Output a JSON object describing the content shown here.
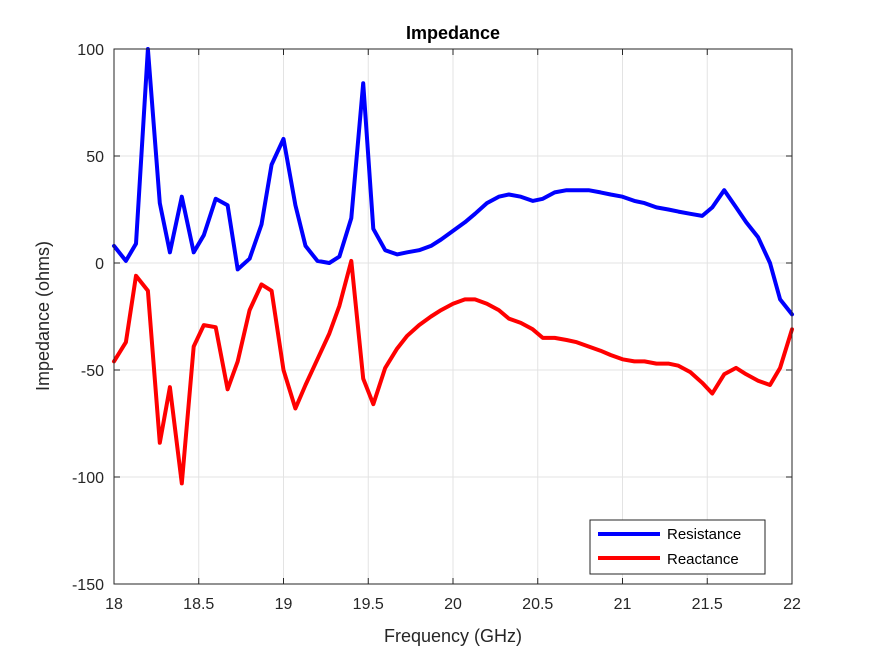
{
  "chart_data": {
    "type": "line",
    "title": "Impedance",
    "xlabel": "Frequency (GHz)",
    "ylabel": "Impedance (ohms)",
    "xlim": [
      18,
      22
    ],
    "ylim": [
      -150,
      100
    ],
    "xticks": [
      18,
      18.5,
      19,
      19.5,
      20,
      20.5,
      21,
      21.5,
      22
    ],
    "yticks": [
      100,
      50,
      0,
      -50,
      -100,
      -150
    ],
    "xtick_labels": [
      "18",
      "18.5",
      "19",
      "19.5",
      "20",
      "20.5",
      "21",
      "21.5",
      "22"
    ],
    "ytick_labels": [
      "100",
      "50",
      "0",
      "-50",
      "-100",
      "-150"
    ],
    "grid": true,
    "legend_position": "bottom-right",
    "series": [
      {
        "name": "Resistance",
        "color": "#0000ff",
        "points": [
          [
            18.0,
            8
          ],
          [
            18.07,
            1
          ],
          [
            18.13,
            9
          ],
          [
            18.2,
            100
          ],
          [
            18.27,
            28
          ],
          [
            18.33,
            5
          ],
          [
            18.4,
            31
          ],
          [
            18.47,
            5
          ],
          [
            18.53,
            13
          ],
          [
            18.6,
            30
          ],
          [
            18.67,
            27
          ],
          [
            18.73,
            -3
          ],
          [
            18.8,
            2
          ],
          [
            18.87,
            18
          ],
          [
            18.93,
            46
          ],
          [
            19.0,
            58
          ],
          [
            19.07,
            27
          ],
          [
            19.13,
            8
          ],
          [
            19.2,
            1
          ],
          [
            19.27,
            0
          ],
          [
            19.33,
            3
          ],
          [
            19.4,
            21
          ],
          [
            19.47,
            84
          ],
          [
            19.53,
            16
          ],
          [
            19.6,
            6
          ],
          [
            19.67,
            4
          ],
          [
            19.73,
            5
          ],
          [
            19.8,
            6
          ],
          [
            19.87,
            8
          ],
          [
            19.93,
            11
          ],
          [
            20.0,
            15
          ],
          [
            20.07,
            19
          ],
          [
            20.13,
            23
          ],
          [
            20.2,
            28
          ],
          [
            20.27,
            31
          ],
          [
            20.33,
            32
          ],
          [
            20.4,
            31
          ],
          [
            20.47,
            29
          ],
          [
            20.53,
            30
          ],
          [
            20.6,
            33
          ],
          [
            20.67,
            34
          ],
          [
            20.73,
            34
          ],
          [
            20.8,
            34
          ],
          [
            20.87,
            33
          ],
          [
            20.93,
            32
          ],
          [
            21.0,
            31
          ],
          [
            21.07,
            29
          ],
          [
            21.13,
            28
          ],
          [
            21.2,
            26
          ],
          [
            21.27,
            25
          ],
          [
            21.33,
            24
          ],
          [
            21.4,
            23
          ],
          [
            21.47,
            22
          ],
          [
            21.53,
            26
          ],
          [
            21.6,
            34
          ],
          [
            21.67,
            26
          ],
          [
            21.73,
            19
          ],
          [
            21.8,
            12
          ],
          [
            21.87,
            0
          ],
          [
            21.93,
            -17
          ],
          [
            22.0,
            -24
          ]
        ]
      },
      {
        "name": "Reactance",
        "color": "#ff0000",
        "points": [
          [
            18.0,
            -46
          ],
          [
            18.07,
            -37
          ],
          [
            18.13,
            -6
          ],
          [
            18.2,
            -13
          ],
          [
            18.27,
            -84
          ],
          [
            18.33,
            -58
          ],
          [
            18.4,
            -103
          ],
          [
            18.47,
            -39
          ],
          [
            18.53,
            -29
          ],
          [
            18.6,
            -30
          ],
          [
            18.67,
            -59
          ],
          [
            18.73,
            -46
          ],
          [
            18.8,
            -22
          ],
          [
            18.87,
            -10
          ],
          [
            18.93,
            -13
          ],
          [
            19.0,
            -50
          ],
          [
            19.07,
            -68
          ],
          [
            19.13,
            -57
          ],
          [
            19.2,
            -45
          ],
          [
            19.27,
            -33
          ],
          [
            19.33,
            -20
          ],
          [
            19.4,
            1
          ],
          [
            19.47,
            -54
          ],
          [
            19.53,
            -66
          ],
          [
            19.6,
            -49
          ],
          [
            19.67,
            -40
          ],
          [
            19.73,
            -34
          ],
          [
            19.8,
            -29
          ],
          [
            19.87,
            -25
          ],
          [
            19.93,
            -22
          ],
          [
            20.0,
            -19
          ],
          [
            20.07,
            -17
          ],
          [
            20.13,
            -17
          ],
          [
            20.2,
            -19
          ],
          [
            20.27,
            -22
          ],
          [
            20.33,
            -26
          ],
          [
            20.4,
            -28
          ],
          [
            20.47,
            -31
          ],
          [
            20.53,
            -35
          ],
          [
            20.6,
            -35
          ],
          [
            20.67,
            -36
          ],
          [
            20.73,
            -37
          ],
          [
            20.8,
            -39
          ],
          [
            20.87,
            -41
          ],
          [
            20.93,
            -43
          ],
          [
            21.0,
            -45
          ],
          [
            21.07,
            -46
          ],
          [
            21.13,
            -46
          ],
          [
            21.2,
            -47
          ],
          [
            21.27,
            -47
          ],
          [
            21.33,
            -48
          ],
          [
            21.4,
            -51
          ],
          [
            21.47,
            -56
          ],
          [
            21.53,
            -61
          ],
          [
            21.6,
            -52
          ],
          [
            21.67,
            -49
          ],
          [
            21.73,
            -52
          ],
          [
            21.8,
            -55
          ],
          [
            21.87,
            -57
          ],
          [
            21.93,
            -49
          ],
          [
            22.0,
            -31
          ]
        ]
      }
    ]
  }
}
